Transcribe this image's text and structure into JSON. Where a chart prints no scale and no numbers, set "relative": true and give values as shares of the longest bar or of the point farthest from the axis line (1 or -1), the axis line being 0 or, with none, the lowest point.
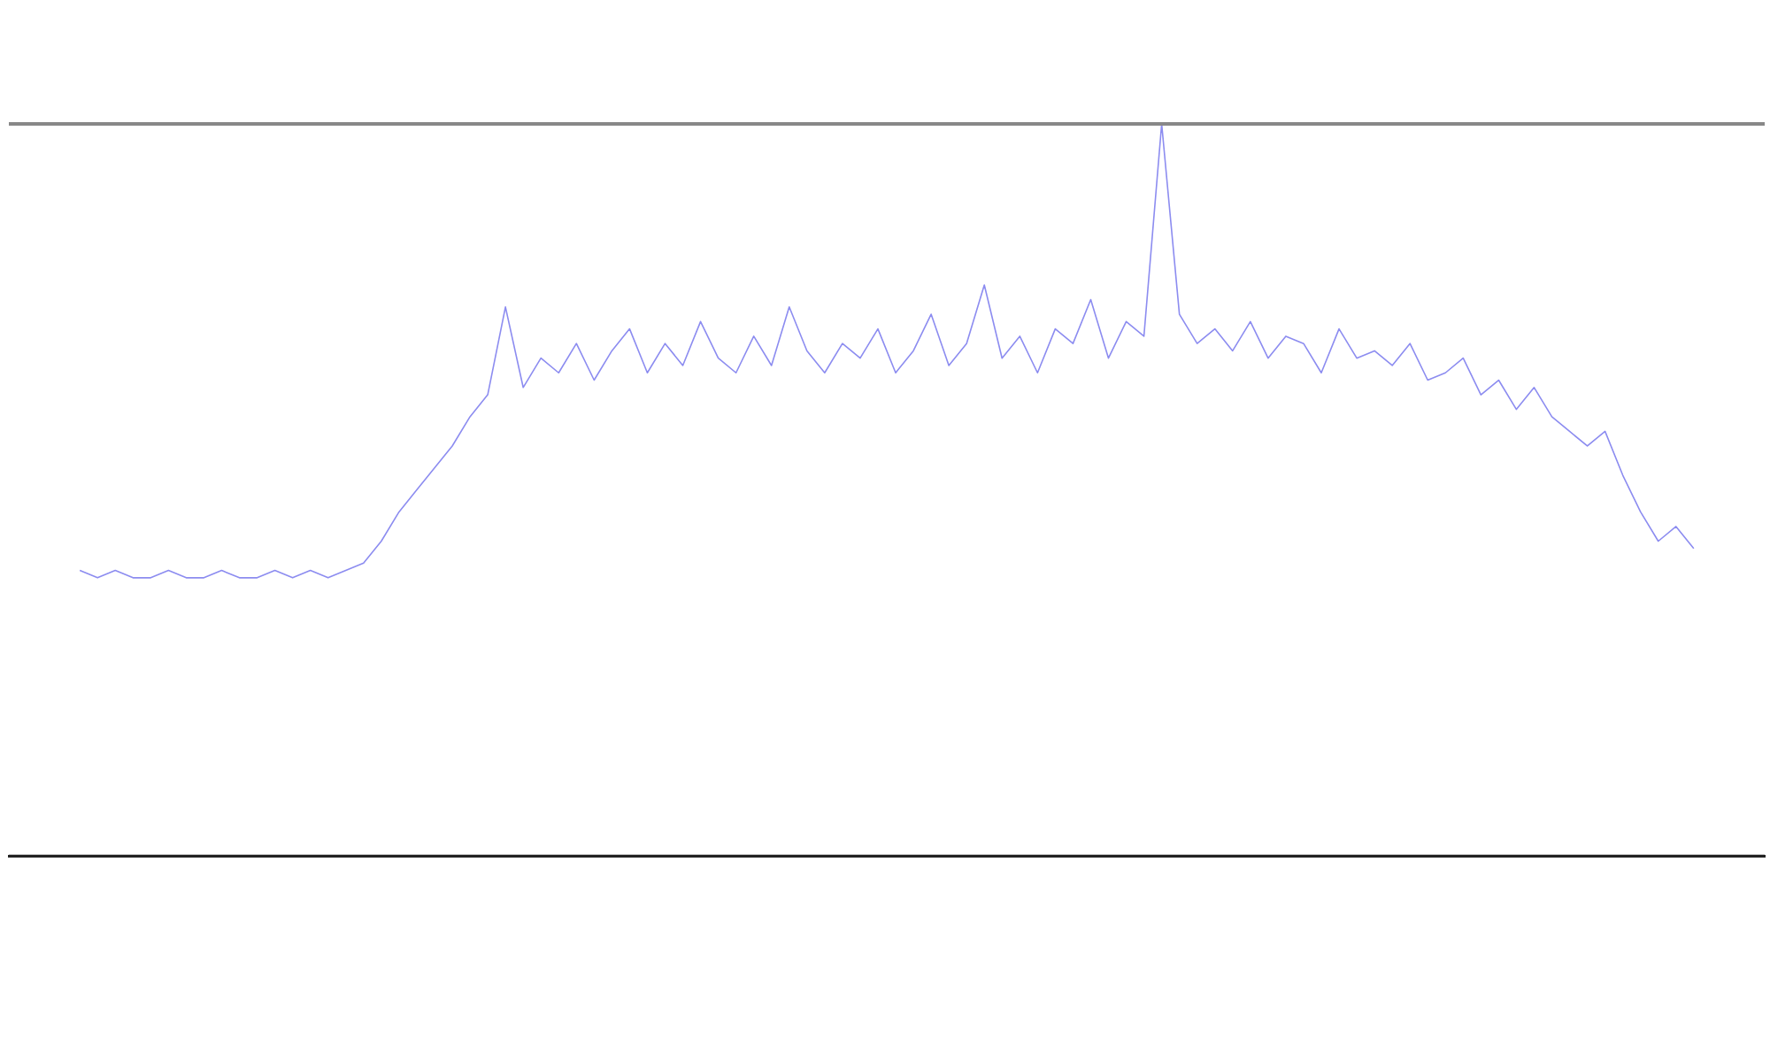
{
  "chart_data": {
    "type": "line",
    "relative": true,
    "grid": false,
    "legend": false,
    "categories": [
      null,
      null,
      null,
      null,
      null,
      null,
      null,
      null,
      null,
      null,
      null,
      null,
      null,
      null,
      null,
      null,
      null,
      null,
      null,
      null,
      null,
      null,
      null,
      null,
      null,
      null,
      null,
      null,
      null,
      null,
      null,
      null,
      null,
      null,
      null,
      null,
      null,
      null,
      null,
      null,
      null,
      null,
      null,
      null,
      null,
      null,
      null,
      null,
      null,
      null,
      null,
      null,
      null,
      null,
      null,
      null,
      null,
      null,
      null,
      null,
      null,
      null,
      null,
      null,
      null,
      null,
      null,
      null,
      null,
      null,
      null,
      null,
      null,
      null,
      null,
      null,
      null,
      null,
      null,
      null,
      null,
      null,
      null,
      null,
      null,
      null,
      null,
      null,
      null,
      null,
      null,
      null,
      null,
      null,
      null,
      null,
      null,
      null,
      null,
      null
    ],
    "series": [
      {
        "color": "#8c8cf0",
        "values": [
          null,
          null,
          null,
          null,
          0.39,
          0.38,
          0.39,
          0.38,
          0.38,
          0.39,
          0.38,
          0.38,
          0.39,
          0.38,
          0.38,
          0.39,
          0.38,
          0.39,
          0.38,
          0.39,
          0.4,
          0.43,
          0.47,
          0.5,
          0.53,
          0.56,
          0.6,
          0.63,
          0.75,
          0.64,
          0.68,
          0.66,
          0.7,
          0.65,
          0.69,
          0.72,
          0.66,
          0.7,
          0.67,
          0.73,
          0.68,
          0.66,
          0.71,
          0.67,
          0.75,
          0.69,
          0.66,
          0.7,
          0.68,
          0.72,
          0.66,
          0.69,
          0.74,
          0.67,
          0.7,
          0.78,
          0.68,
          0.71,
          0.66,
          0.72,
          0.7,
          0.76,
          0.68,
          0.73,
          0.71,
          1.0,
          0.74,
          0.7,
          0.72,
          0.69,
          0.73,
          0.68,
          0.71,
          0.7,
          0.66,
          0.72,
          0.68,
          0.69,
          0.67,
          0.7,
          0.65,
          0.66,
          0.68,
          0.63,
          0.65,
          0.61,
          0.64,
          0.6,
          0.58,
          0.56,
          0.58,
          0.52,
          0.47,
          0.43,
          0.45,
          0.42,
          null,
          null,
          null,
          null
        ]
      }
    ]
  }
}
